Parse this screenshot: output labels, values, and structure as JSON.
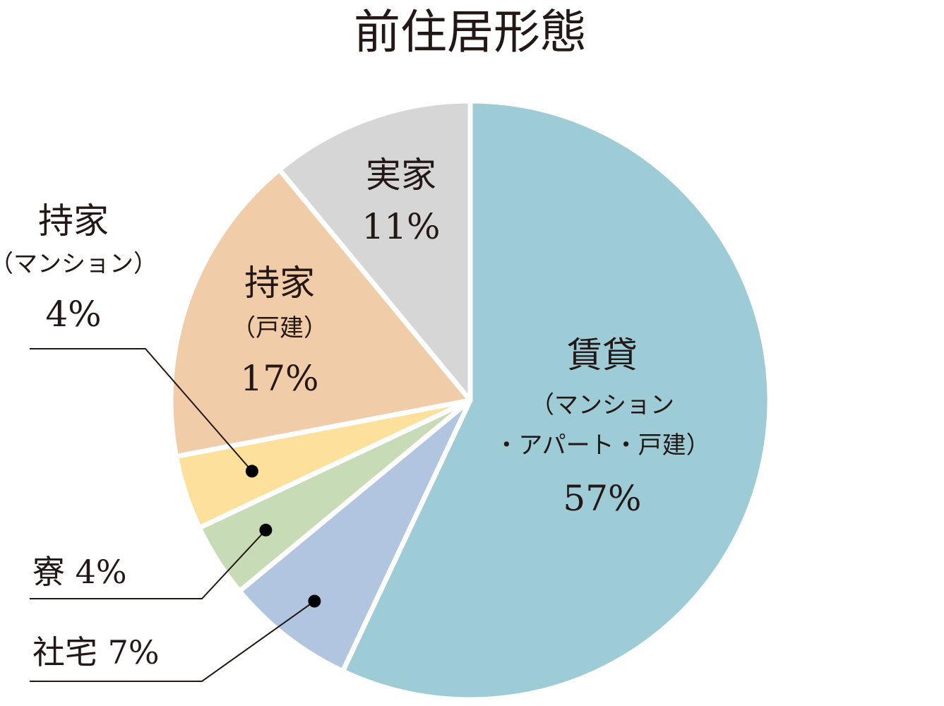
{
  "title": "前住居形態",
  "chart_data": {
    "type": "pie",
    "title": "前住居形態",
    "slices": [
      {
        "lines": [
          "賃貸",
          "（マンション",
          "・アパート・戸建）"
        ],
        "value": 57,
        "value_label": "57%",
        "color": "#9dcbd6"
      },
      {
        "lines": [
          "社宅"
        ],
        "value": 7,
        "value_label": "7%",
        "color": "#b2c5e0"
      },
      {
        "lines": [
          "寮"
        ],
        "value": 4,
        "value_label": "4%",
        "color": "#c7dbb7"
      },
      {
        "lines": [
          "持家",
          "（マンション）"
        ],
        "value": 4,
        "value_label": "4%",
        "color": "#fde09c"
      },
      {
        "lines": [
          "持家",
          "（戸建）"
        ],
        "value": 17,
        "value_label": "17%",
        "color": "#f0cca8"
      },
      {
        "lines": [
          "実家"
        ],
        "value": 11,
        "value_label": "11%",
        "color": "#d6d6d6"
      }
    ]
  }
}
